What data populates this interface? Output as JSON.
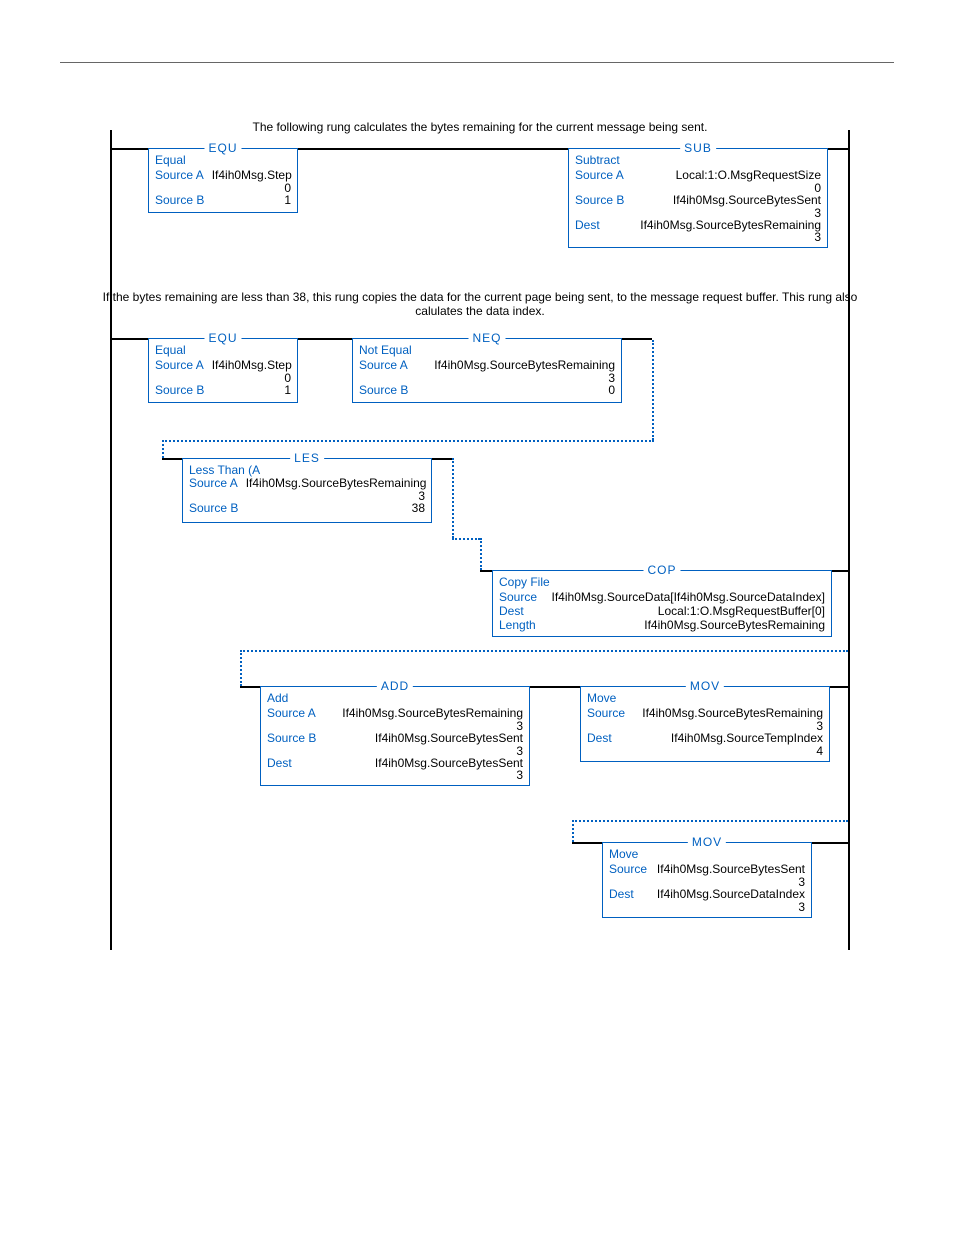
{
  "colors": {
    "accent": "#0060c0",
    "rail": "#000000",
    "text": "#000000",
    "dashed": "#0060c0",
    "hr": "#666666"
  },
  "comments": {
    "rung1": "The following rung calculates the bytes remaining for the current message being sent.",
    "rung2": "If the bytes remaining are less than 38, this rung copies the data for the current page being sent, to the message request buffer.  This rung also calulates the data index."
  },
  "boxes": {
    "equ1": {
      "mnemonic": "EQU",
      "title": "Equal",
      "rows": [
        {
          "label": "Source A",
          "val": "If4ih0Msg.Step",
          "sub": "0"
        },
        {
          "label": "Source B",
          "val": "1",
          "sub": ""
        }
      ]
    },
    "sub1": {
      "mnemonic": "SUB",
      "title": "Subtract",
      "rows": [
        {
          "label": "Source A",
          "val": "Local:1:O.MsgRequestSize",
          "sub": "0"
        },
        {
          "label": "Source B",
          "val": "If4ih0Msg.SourceBytesSent",
          "sub": "3"
        },
        {
          "label": "Dest",
          "val": "If4ih0Msg.SourceBytesRemaining",
          "sub": "3"
        }
      ]
    },
    "equ2": {
      "mnemonic": "EQU",
      "title": "Equal",
      "rows": [
        {
          "label": "Source A",
          "val": "If4ih0Msg.Step",
          "sub": "0"
        },
        {
          "label": "Source B",
          "val": "1",
          "sub": ""
        }
      ]
    },
    "neq1": {
      "mnemonic": "NEQ",
      "title": "Not Equal",
      "rows": [
        {
          "label": "Source A",
          "val": "If4ih0Msg.SourceBytesRemaining",
          "sub": "3"
        },
        {
          "label": "Source B",
          "val": "0",
          "sub": ""
        }
      ]
    },
    "les1": {
      "mnemonic": "LES",
      "title": "Less Than (A<B)",
      "rows": [
        {
          "label": "Source A",
          "val": "If4ih0Msg.SourceBytesRemaining",
          "sub": "3"
        },
        {
          "label": "Source B",
          "val": "38",
          "sub": ""
        }
      ]
    },
    "cop1": {
      "mnemonic": "COP",
      "title": "Copy File",
      "rows": [
        {
          "label": "Source",
          "val": "If4ih0Msg.SourceData[If4ih0Msg.SourceDataIndex]",
          "sub": ""
        },
        {
          "label": "Dest",
          "val": "Local:1:O.MsgRequestBuffer[0]",
          "sub": ""
        },
        {
          "label": "Length",
          "val": "If4ih0Msg.SourceBytesRemaining",
          "sub": ""
        }
      ]
    },
    "add1": {
      "mnemonic": "ADD",
      "title": "Add",
      "rows": [
        {
          "label": "Source A",
          "val": "If4ih0Msg.SourceBytesRemaining",
          "sub": "3"
        },
        {
          "label": "Source B",
          "val": "If4ih0Msg.SourceBytesSent",
          "sub": "3"
        },
        {
          "label": "Dest",
          "val": "If4ih0Msg.SourceBytesSent",
          "sub": "3"
        }
      ]
    },
    "mov1": {
      "mnemonic": "MOV",
      "title": "Move",
      "rows": [
        {
          "label": "Source",
          "val": "If4ih0Msg.SourceBytesRemaining",
          "sub": "3"
        },
        {
          "label": "Dest",
          "val": "If4ih0Msg.SourceTempIndex",
          "sub": "4"
        }
      ]
    },
    "mov2": {
      "mnemonic": "MOV",
      "title": "Move",
      "rows": [
        {
          "label": "Source",
          "val": "If4ih0Msg.SourceBytesSent",
          "sub": "3"
        },
        {
          "label": "Dest",
          "val": "If4ih0Msg.SourceDataIndex",
          "sub": "3"
        }
      ]
    }
  }
}
